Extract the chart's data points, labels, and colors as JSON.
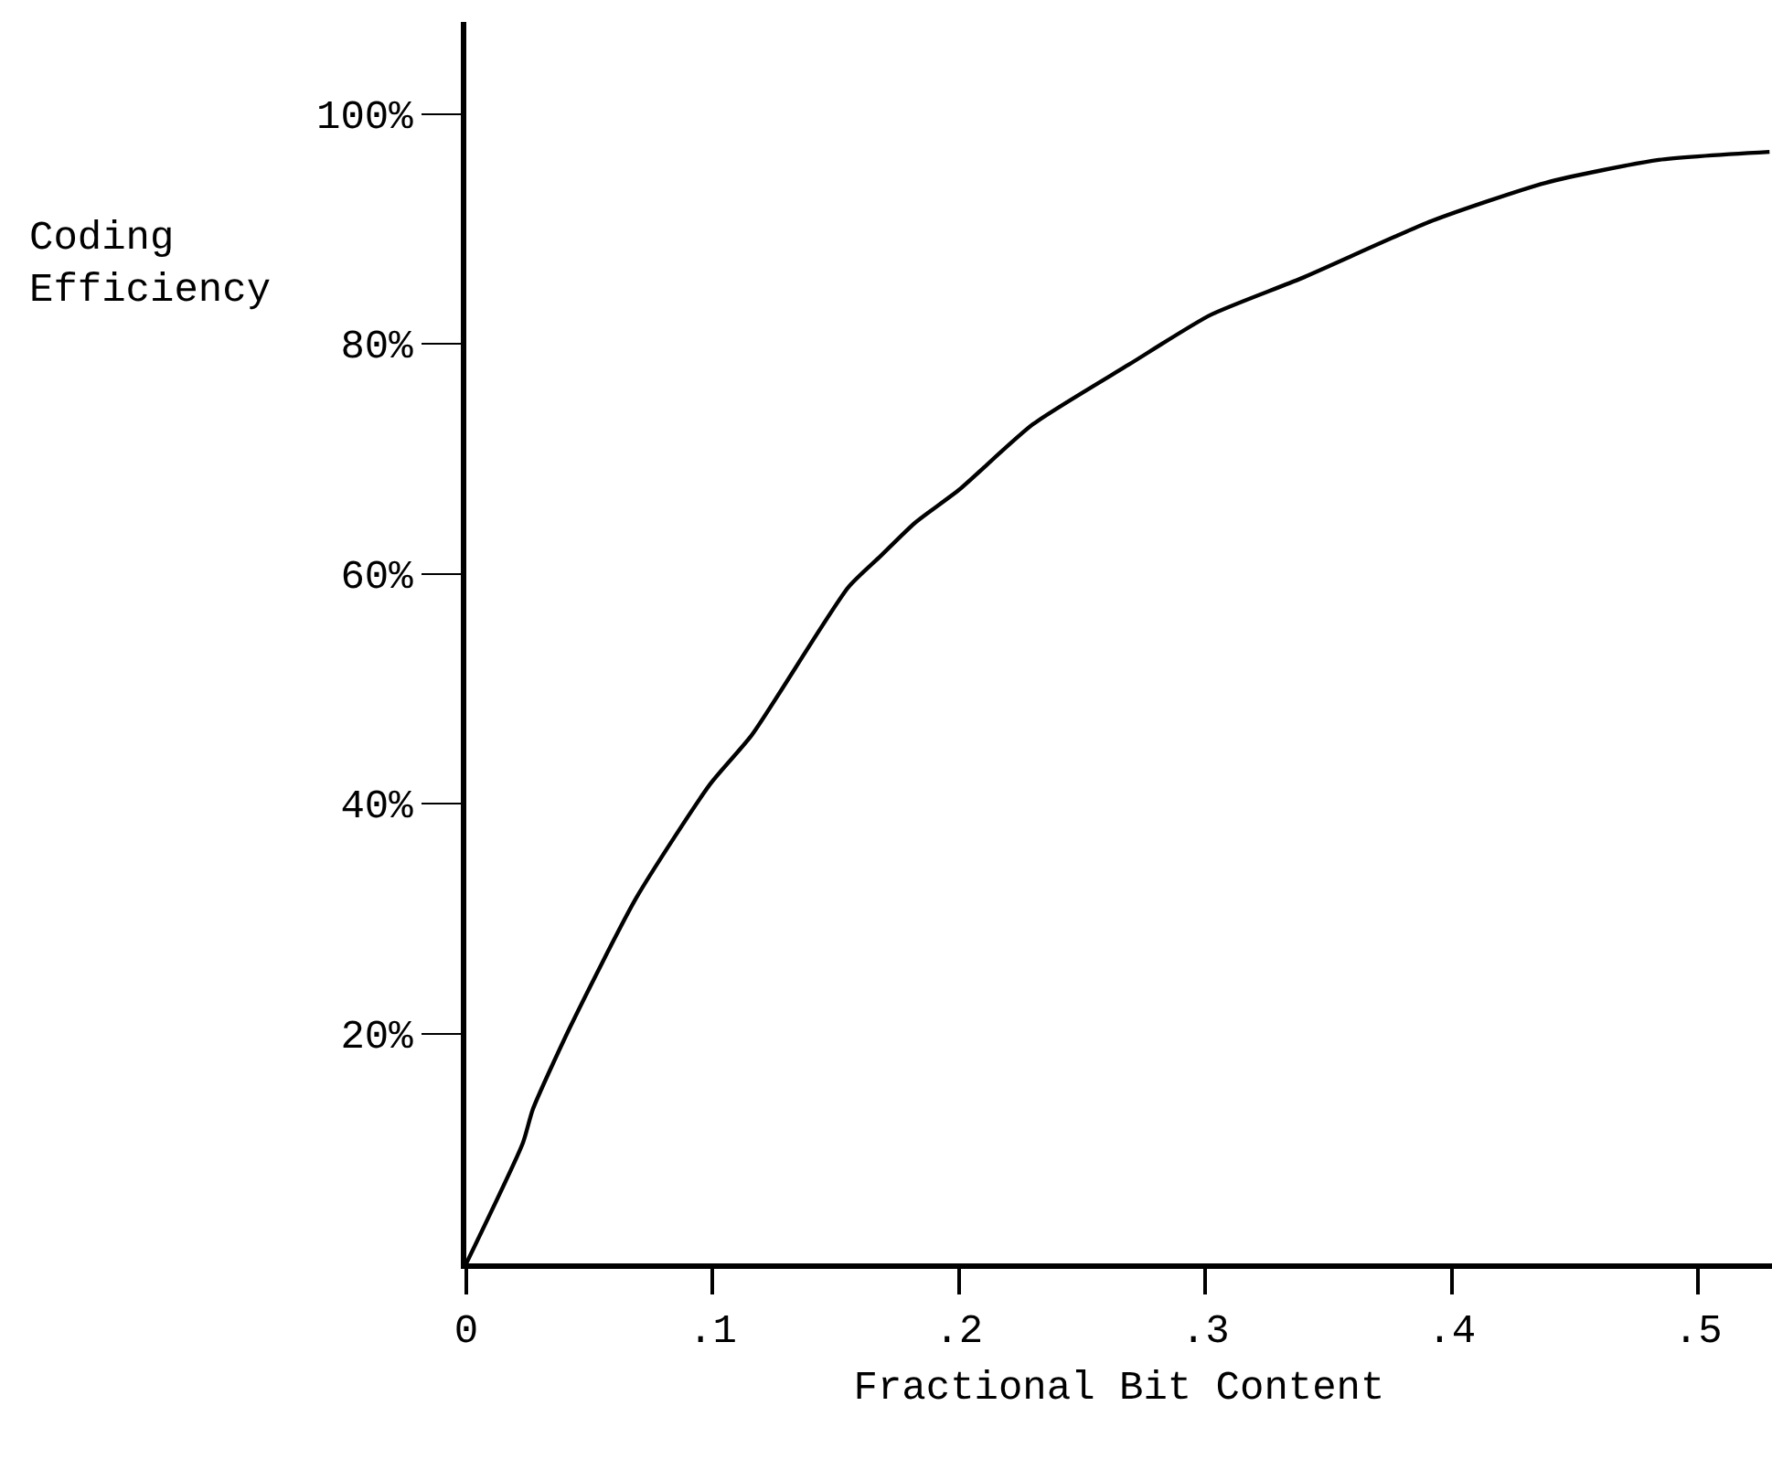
{
  "chart_data": {
    "type": "line",
    "xlabel": "Fractional Bit Content",
    "ylabel": "Coding Efficiency",
    "x": [
      0,
      0.023,
      0.027,
      0.042,
      0.069,
      0.099,
      0.116,
      0.155,
      0.168,
      0.182,
      0.2,
      0.23,
      0.269,
      0.302,
      0.339,
      0.392,
      0.438,
      0.484,
      0.529
    ],
    "series": [
      {
        "color": "#000000",
        "values": [
          0,
          10.5,
          13.4,
          20.5,
          31.8,
          41.7,
          46,
          58.8,
          61.5,
          64.4,
          67.3,
          73,
          78.2,
          82.5,
          85.7,
          90.7,
          94,
          96,
          96.7
        ]
      }
    ],
    "xlim": [
      0,
      0.53
    ],
    "ylim": [
      0,
      108
    ],
    "xticks": [
      0,
      {
        "value": 0.1,
        "label": ".1"
      },
      {
        "value": 0.2,
        "label": ".2"
      },
      {
        "value": 0.3,
        "label": ".3"
      },
      {
        "value": 0.4,
        "label": ".4"
      },
      {
        "value": 0.5,
        "label": ".5"
      }
    ],
    "yticks": [
      {
        "value": 20,
        "label": "20%"
      },
      {
        "value": 40,
        "label": "40%"
      },
      {
        "value": 60,
        "label": "60%"
      },
      {
        "value": 80,
        "label": "80%"
      },
      {
        "value": 100,
        "label": "100%"
      }
    ],
    "grid": false,
    "marker": "none",
    "line_style": "solid"
  }
}
